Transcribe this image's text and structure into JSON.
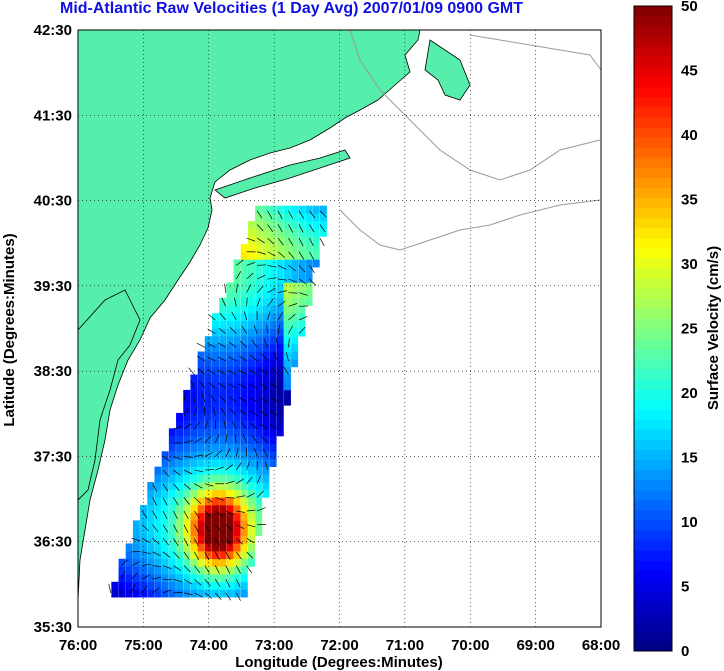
{
  "title": "Mid-Atlantic Raw Velocities (1 Day Avg) 2007/01/09 0900 GMT",
  "map": {
    "xlabel": "Longitude (Degrees:Minutes)",
    "ylabel": "Latitude (Degrees:Minutes)",
    "lon_ticks": [
      "76:00",
      "75:00",
      "74:00",
      "73:00",
      "72:00",
      "71:00",
      "70:00",
      "69:00",
      "68:00"
    ],
    "lat_ticks": [
      "35:30",
      "36:30",
      "37:30",
      "38:30",
      "39:30",
      "40:30",
      "41:30",
      "42:30"
    ],
    "lon_range": [
      -76,
      -68
    ],
    "lat_range": [
      35.5,
      42.5
    ],
    "land_color": "#55eeaa",
    "grid": "dotted"
  },
  "colorbar": {
    "label": "Surface Velocity (cm/s)",
    "ticks": [
      "0",
      "5",
      "10",
      "15",
      "20",
      "25",
      "30",
      "35",
      "40",
      "45",
      "50"
    ],
    "range": [
      0,
      50
    ],
    "colormap": "jet"
  }
}
